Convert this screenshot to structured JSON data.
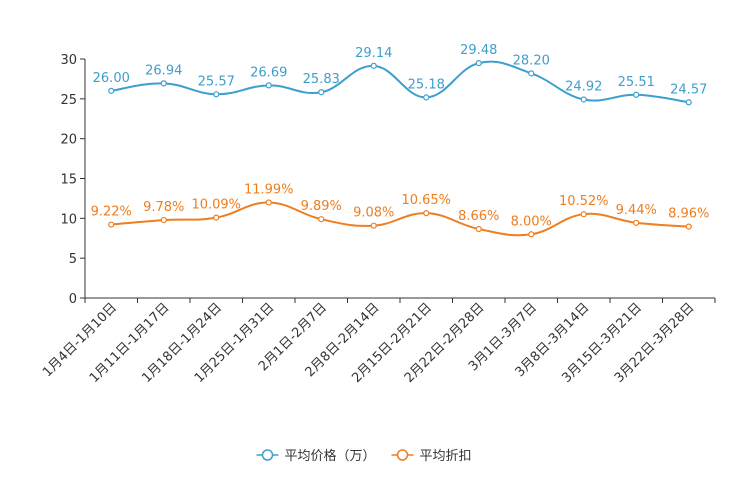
{
  "chart_data": {
    "type": "line",
    "title": "",
    "xlabel": "",
    "ylabel": "",
    "ylim": [
      0,
      30
    ],
    "yticks": [
      0,
      5,
      10,
      15,
      20,
      25,
      30
    ],
    "categories": [
      "1月4日-1月10日",
      "1月11日-1月17日",
      "1月18日-1月24日",
      "1月25日-1月31日",
      "2月1日-2月7日",
      "2月8日-2月14日",
      "2月15日-2月21日",
      "2月22日-2月28日",
      "3月1日-3月7日",
      "3月8日-3月14日",
      "3月15日-3月21日",
      "3月22日-3月28日"
    ],
    "series": [
      {
        "name": "平均价格（万）",
        "color": "#3d9fce",
        "values": [
          26.0,
          26.94,
          25.57,
          26.69,
          25.83,
          29.14,
          25.18,
          29.48,
          28.2,
          24.92,
          25.51,
          24.57
        ],
        "labels": [
          "26.00",
          "26.94",
          "25.57",
          "26.69",
          "25.83",
          "29.14",
          "25.18",
          "29.48",
          "28.20",
          "24.92",
          "25.51",
          "24.57"
        ]
      },
      {
        "name": "平均折扣",
        "color": "#f07d1e",
        "values": [
          9.22,
          9.78,
          10.09,
          11.99,
          9.89,
          9.08,
          10.65,
          8.66,
          8.0,
          10.52,
          9.44,
          8.96
        ],
        "labels": [
          "9.22%",
          "9.78%",
          "10.09%",
          "11.99%",
          "9.89%",
          "9.08%",
          "10.65%",
          "8.66%",
          "8.00%",
          "10.52%",
          "9.44%",
          "8.96%"
        ]
      }
    ],
    "legend_position": "bottom"
  }
}
